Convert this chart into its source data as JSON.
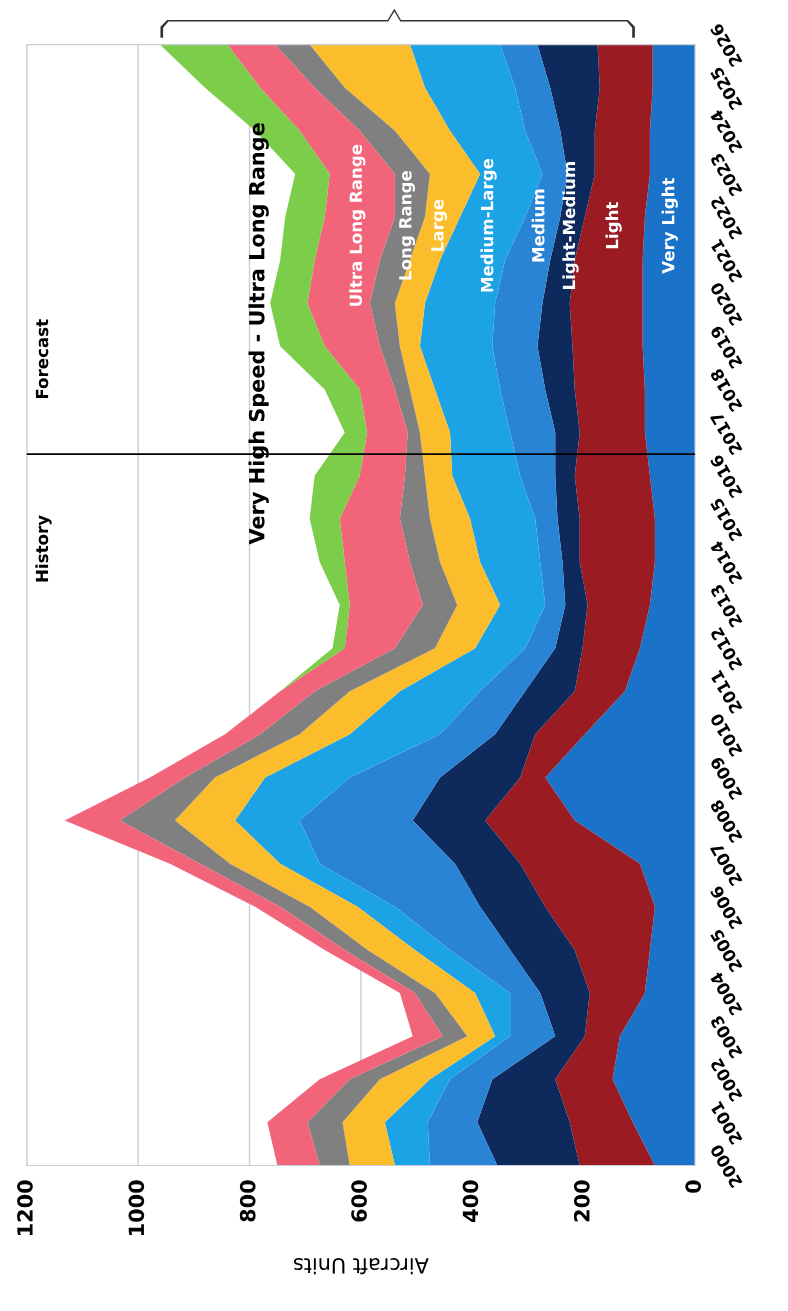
{
  "chart_data": {
    "type": "area",
    "stacked": true,
    "orientation": "horizontal",
    "xlabel": "Aircraft Units",
    "x": [
      2000,
      2001,
      2002,
      2003,
      2004,
      2005,
      2006,
      2007,
      2008,
      2009,
      2010,
      2011,
      2012,
      2013,
      2014,
      2015,
      2016,
      2017,
      2018,
      2019,
      2020,
      2021,
      2022,
      2023,
      2024,
      2025,
      2026
    ],
    "xlim": [
      1200,
      0
    ],
    "xticks": [
      0,
      200,
      400,
      600,
      800,
      1000,
      1200
    ],
    "ylim": [
      2000,
      2026
    ],
    "yticks": [
      2000,
      2001,
      2002,
      2003,
      2004,
      2005,
      2006,
      2007,
      2008,
      2009,
      2010,
      2011,
      2012,
      2013,
      2014,
      2015,
      2016,
      2017,
      2018,
      2019,
      2020,
      2021,
      2022,
      2023,
      2024,
      2025,
      2026
    ],
    "grid": "x",
    "legend": false,
    "ref_lines": [
      {
        "axis": "y",
        "value": 2016.5,
        "color": "#000000"
      }
    ],
    "annotations": [
      "History",
      "Forecast"
    ],
    "series": [
      {
        "name": "Very Light",
        "color": "#1a73c9",
        "values": [
          72,
          112,
          148,
          135,
          90,
          81,
          72,
          99,
          216,
          269,
          198,
          126,
          99,
          81,
          72,
          72,
          81,
          90,
          90,
          94,
          94,
          94,
          90,
          81,
          81,
          76,
          76
        ]
      },
      {
        "name": "Light",
        "color": "#9b1b22",
        "values": [
          135,
          113,
          103,
          63,
          99,
          135,
          197,
          215,
          161,
          45,
          89,
          90,
          103,
          112,
          135,
          135,
          135,
          117,
          126,
          126,
          131,
          122,
          108,
          99,
          99,
          95,
          99
        ]
      },
      {
        "name": "Light-Medium",
        "color": "#0e2a5c",
        "values": [
          148,
          166,
          113,
          53,
          89,
          116,
          117,
          117,
          130,
          144,
          72,
          89,
          49,
          40,
          31,
          40,
          35,
          44,
          53,
          63,
          49,
          44,
          44,
          49,
          62,
          89,
          108
        ]
      },
      {
        "name": "Medium",
        "color": "#2a84d6",
        "values": [
          121,
          89,
          76,
          81,
          54,
          108,
          153,
          243,
          203,
          162,
          99,
          81,
          54,
          36,
          40,
          40,
          63,
          81,
          81,
          81,
          85,
          81,
          63,
          45,
          63,
          63,
          67
        ]
      },
      {
        "name": "Medium-Large",
        "color": "#1ca3e6",
        "values": [
          63,
          77,
          36,
          27,
          63,
          63,
          67,
          71,
          116,
          152,
          162,
          144,
          90,
          81,
          108,
          117,
          122,
          108,
          117,
          130,
          126,
          117,
          117,
          112,
          135,
          162,
          162
        ]
      },
      {
        "name": "Large",
        "color": "#fbbd2c",
        "values": [
          81,
          76,
          90,
          50,
          72,
          85,
          86,
          90,
          108,
          90,
          90,
          90,
          72,
          77,
          72,
          72,
          49,
          54,
          45,
          36,
          54,
          54,
          63,
          90,
          99,
          144,
          180
        ]
      },
      {
        "name": "Long Range",
        "color": "#808080",
        "values": [
          54,
          63,
          54,
          44,
          36,
          41,
          53,
          54,
          99,
          54,
          71,
          63,
          72,
          62,
          54,
          54,
          36,
          22,
          27,
          36,
          45,
          54,
          54,
          63,
          63,
          54,
          62
        ]
      },
      {
        "name": "Ultra Long Range",
        "color": "#f2647a",
        "values": [
          76,
          72,
          54,
          54,
          27,
          36,
          45,
          54,
          99,
          63,
          63,
          62,
          90,
          131,
          117,
          108,
          81,
          73,
          63,
          99,
          112,
          117,
          126,
          117,
          108,
          98,
          86
        ]
      },
      {
        "name": "Very High Speed - Ultra Long Range",
        "color": "#7ccd4a",
        "values": [
          0,
          0,
          0,
          0,
          0,
          0,
          0,
          0,
          0,
          0,
          0,
          0,
          22,
          18,
          45,
          54,
          81,
          40,
          63,
          80,
          67,
          62,
          71,
          62,
          80,
          99,
          121
        ]
      }
    ]
  }
}
